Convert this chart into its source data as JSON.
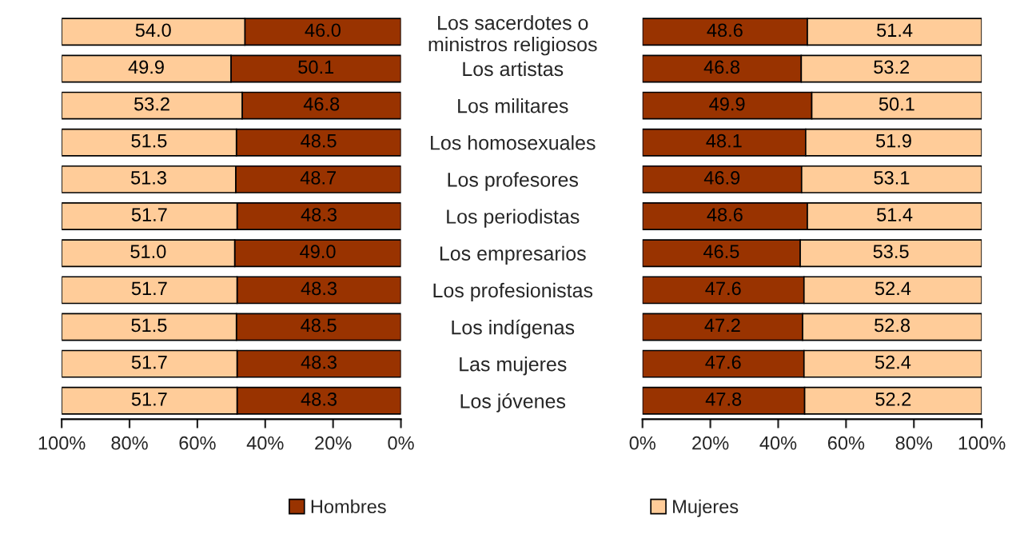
{
  "chart_data": [
    {
      "type": "bar",
      "orientation": "horizontal",
      "stacked": true,
      "legend": "bottom",
      "tick_labels": "x",
      "grid": false,
      "xlim": [
        100,
        0
      ],
      "xticks": [
        {
          "value": 100,
          "label": "100%"
        },
        {
          "value": 80,
          "label": "80%"
        },
        {
          "value": 60,
          "label": "60%"
        },
        {
          "value": 40,
          "label": "40%"
        },
        {
          "value": 20,
          "label": "20%"
        },
        {
          "value": 0,
          "label": "0%"
        }
      ],
      "series": [
        {
          "name": "Hombres",
          "color": "#993300",
          "values": [
            46.0,
            50.1,
            46.8,
            48.5,
            48.7,
            48.3,
            49.0,
            48.3,
            48.5,
            48.3,
            48.3
          ],
          "value_labels": [
            "46.0",
            "50.1",
            "46.8",
            "48.5",
            "48.7",
            "48.3",
            "49.0",
            "48.3",
            "48.5",
            "48.3",
            "48.3"
          ]
        },
        {
          "name": "Mujeres",
          "color": "#ffcc99",
          "values": [
            54.0,
            49.9,
            53.2,
            51.5,
            51.3,
            51.7,
            51.0,
            51.7,
            51.5,
            51.7,
            51.7
          ],
          "value_labels": [
            "54.0",
            "49.9",
            "53.2",
            "51.5",
            "51.3",
            "51.7",
            "51.0",
            "51.7",
            "51.5",
            "51.7",
            "51.7"
          ]
        }
      ]
    },
    {
      "type": "bar",
      "orientation": "horizontal",
      "stacked": true,
      "data_labels": true,
      "grid": false,
      "categories": [
        "Los sacerdotes o\nministros religiosos",
        "Los artistas",
        "Los militares",
        "Los homosexuales",
        "Los profesores",
        "Los periodistas",
        "Los empresarios",
        "Los profesionistas",
        "Los indígenas",
        "Las mujeres",
        "Los jóvenes"
      ],
      "xlim": [
        0,
        100
      ],
      "xticks": [
        {
          "value": 0,
          "label": "0%"
        },
        {
          "value": 20,
          "label": "20%"
        },
        {
          "value": 40,
          "label": "40%"
        },
        {
          "value": 60,
          "label": "60%"
        },
        {
          "value": 80,
          "label": "80%"
        },
        {
          "value": 100,
          "label": "100%"
        }
      ],
      "series": [
        {
          "color": "#993300",
          "values": [
            48.6,
            46.8,
            49.9,
            48.1,
            46.9,
            48.6,
            46.5,
            47.6,
            47.2,
            47.6,
            47.8
          ]
        },
        {
          "color": "#ffcc99",
          "values": [
            51.4,
            53.2,
            50.1,
            51.9,
            53.1,
            51.4,
            53.5,
            52.4,
            52.8,
            52.4,
            52.2
          ]
        }
      ]
    }
  ]
}
